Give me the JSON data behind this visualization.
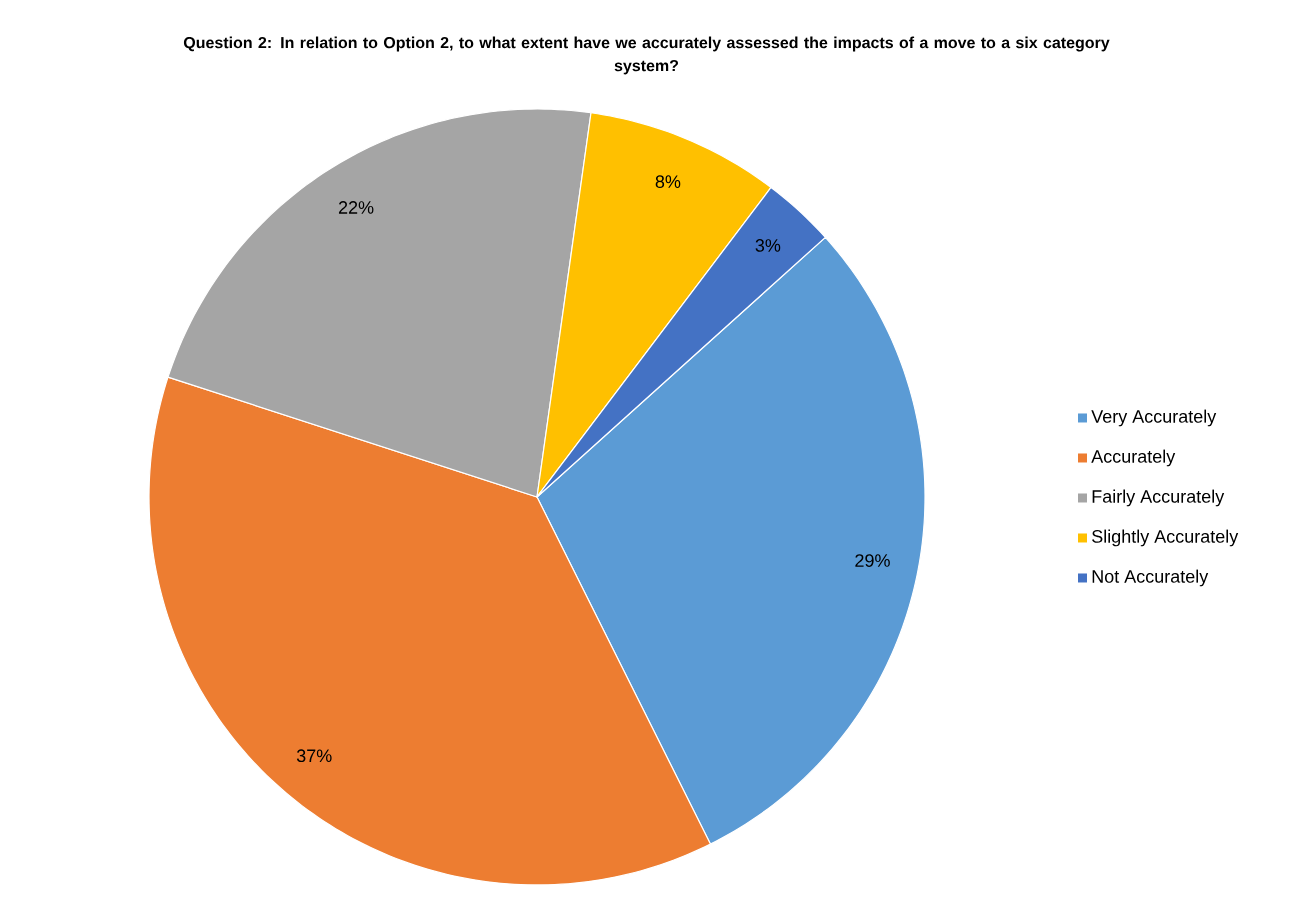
{
  "chart_data": {
    "type": "pie",
    "title": "Question 2: In relation to Option 2, to what extent have we accurately assessed the impacts of a move to a six category system?",
    "categories": [
      "Very Accurately",
      "Accurately",
      "Fairly Accurately",
      "Slightly Accurately",
      "Not Accurately"
    ],
    "values": [
      29,
      37,
      22,
      8,
      3
    ],
    "colors": [
      "#5b9bd5",
      "#ed7d31",
      "#a5a5a5",
      "#ffc000",
      "#4472c4"
    ],
    "value_labels": [
      "29%",
      "37%",
      "22%",
      "8%",
      "3%"
    ],
    "legend": "right"
  }
}
